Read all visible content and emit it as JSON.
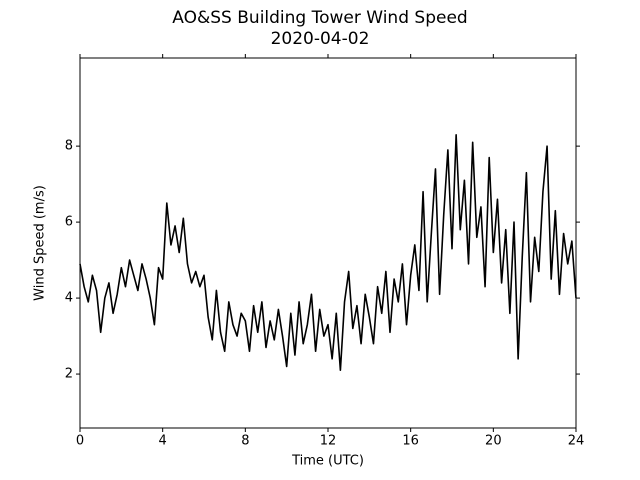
{
  "chart_data": {
    "type": "line",
    "title": "AO&SS Building Tower Wind Speed",
    "subtitle": "2020-04-02",
    "x_label": "Time (UTC)",
    "y_label": "Wind Speed (m/s)",
    "xlim": [
      0,
      24
    ],
    "xticks": [
      0,
      4,
      8,
      12,
      16,
      20,
      24
    ],
    "ylim": [
      0.58,
      10.32
    ],
    "yticks": [
      2,
      4,
      6,
      8
    ],
    "grid": false,
    "series": [
      {
        "name": "Wind Speed",
        "color": "#000000",
        "x": [
          0.0,
          0.2,
          0.4,
          0.6,
          0.8,
          1.0,
          1.2,
          1.4,
          1.6,
          1.8,
          2.0,
          2.2,
          2.4,
          2.6,
          2.8,
          3.0,
          3.2,
          3.4,
          3.6,
          3.8,
          4.0,
          4.2,
          4.4,
          4.6,
          4.8,
          5.0,
          5.2,
          5.4,
          5.6,
          5.8,
          6.0,
          6.2,
          6.4,
          6.6,
          6.8,
          7.0,
          7.2,
          7.4,
          7.6,
          7.8,
          8.0,
          8.2,
          8.4,
          8.6,
          8.8,
          9.0,
          9.2,
          9.4,
          9.6,
          9.8,
          10.0,
          10.2,
          10.4,
          10.6,
          10.8,
          11.0,
          11.2,
          11.4,
          11.6,
          11.8,
          12.0,
          12.2,
          12.4,
          12.6,
          12.8,
          13.0,
          13.2,
          13.4,
          13.6,
          13.8,
          14.0,
          14.2,
          14.4,
          14.6,
          14.8,
          15.0,
          15.2,
          15.4,
          15.6,
          15.8,
          16.0,
          16.2,
          16.4,
          16.6,
          16.8,
          17.0,
          17.2,
          17.4,
          17.6,
          17.8,
          18.0,
          18.2,
          18.4,
          18.6,
          18.8,
          19.0,
          19.2,
          19.4,
          19.6,
          19.8,
          20.0,
          20.2,
          20.4,
          20.6,
          20.8,
          21.0,
          21.2,
          21.4,
          21.6,
          21.8,
          22.0,
          22.2,
          22.4,
          22.6,
          22.8,
          23.0,
          23.2,
          23.4,
          23.6,
          23.8,
          24.0
        ],
        "values": [
          4.9,
          4.3,
          3.9,
          4.6,
          4.2,
          3.1,
          4.0,
          4.4,
          3.6,
          4.1,
          4.8,
          4.3,
          5.0,
          4.6,
          4.2,
          4.9,
          4.5,
          4.0,
          3.3,
          4.8,
          4.5,
          6.5,
          5.4,
          5.9,
          5.2,
          6.1,
          4.9,
          4.4,
          4.7,
          4.3,
          4.6,
          3.5,
          2.9,
          4.2,
          3.1,
          2.6,
          3.9,
          3.3,
          3.0,
          3.6,
          3.4,
          2.6,
          3.8,
          3.1,
          3.9,
          2.7,
          3.4,
          2.9,
          3.7,
          3.0,
          2.2,
          3.6,
          2.5,
          3.9,
          2.8,
          3.3,
          4.1,
          2.6,
          3.7,
          3.0,
          3.3,
          2.4,
          3.6,
          2.1,
          3.9,
          4.7,
          3.2,
          3.8,
          2.8,
          4.1,
          3.5,
          2.8,
          4.3,
          3.6,
          4.7,
          3.1,
          4.5,
          3.9,
          4.9,
          3.3,
          4.6,
          5.4,
          4.2,
          6.8,
          3.9,
          5.7,
          7.4,
          4.1,
          6.2,
          7.9,
          5.3,
          8.3,
          5.8,
          7.1,
          4.9,
          8.1,
          5.6,
          6.4,
          4.3,
          7.7,
          5.2,
          6.6,
          4.4,
          5.8,
          3.6,
          6.0,
          2.4,
          5.1,
          7.3,
          3.9,
          5.6,
          4.7,
          6.8,
          8.0,
          4.5,
          6.3,
          4.1,
          5.7,
          4.9,
          5.5,
          4.0
        ]
      }
    ]
  }
}
